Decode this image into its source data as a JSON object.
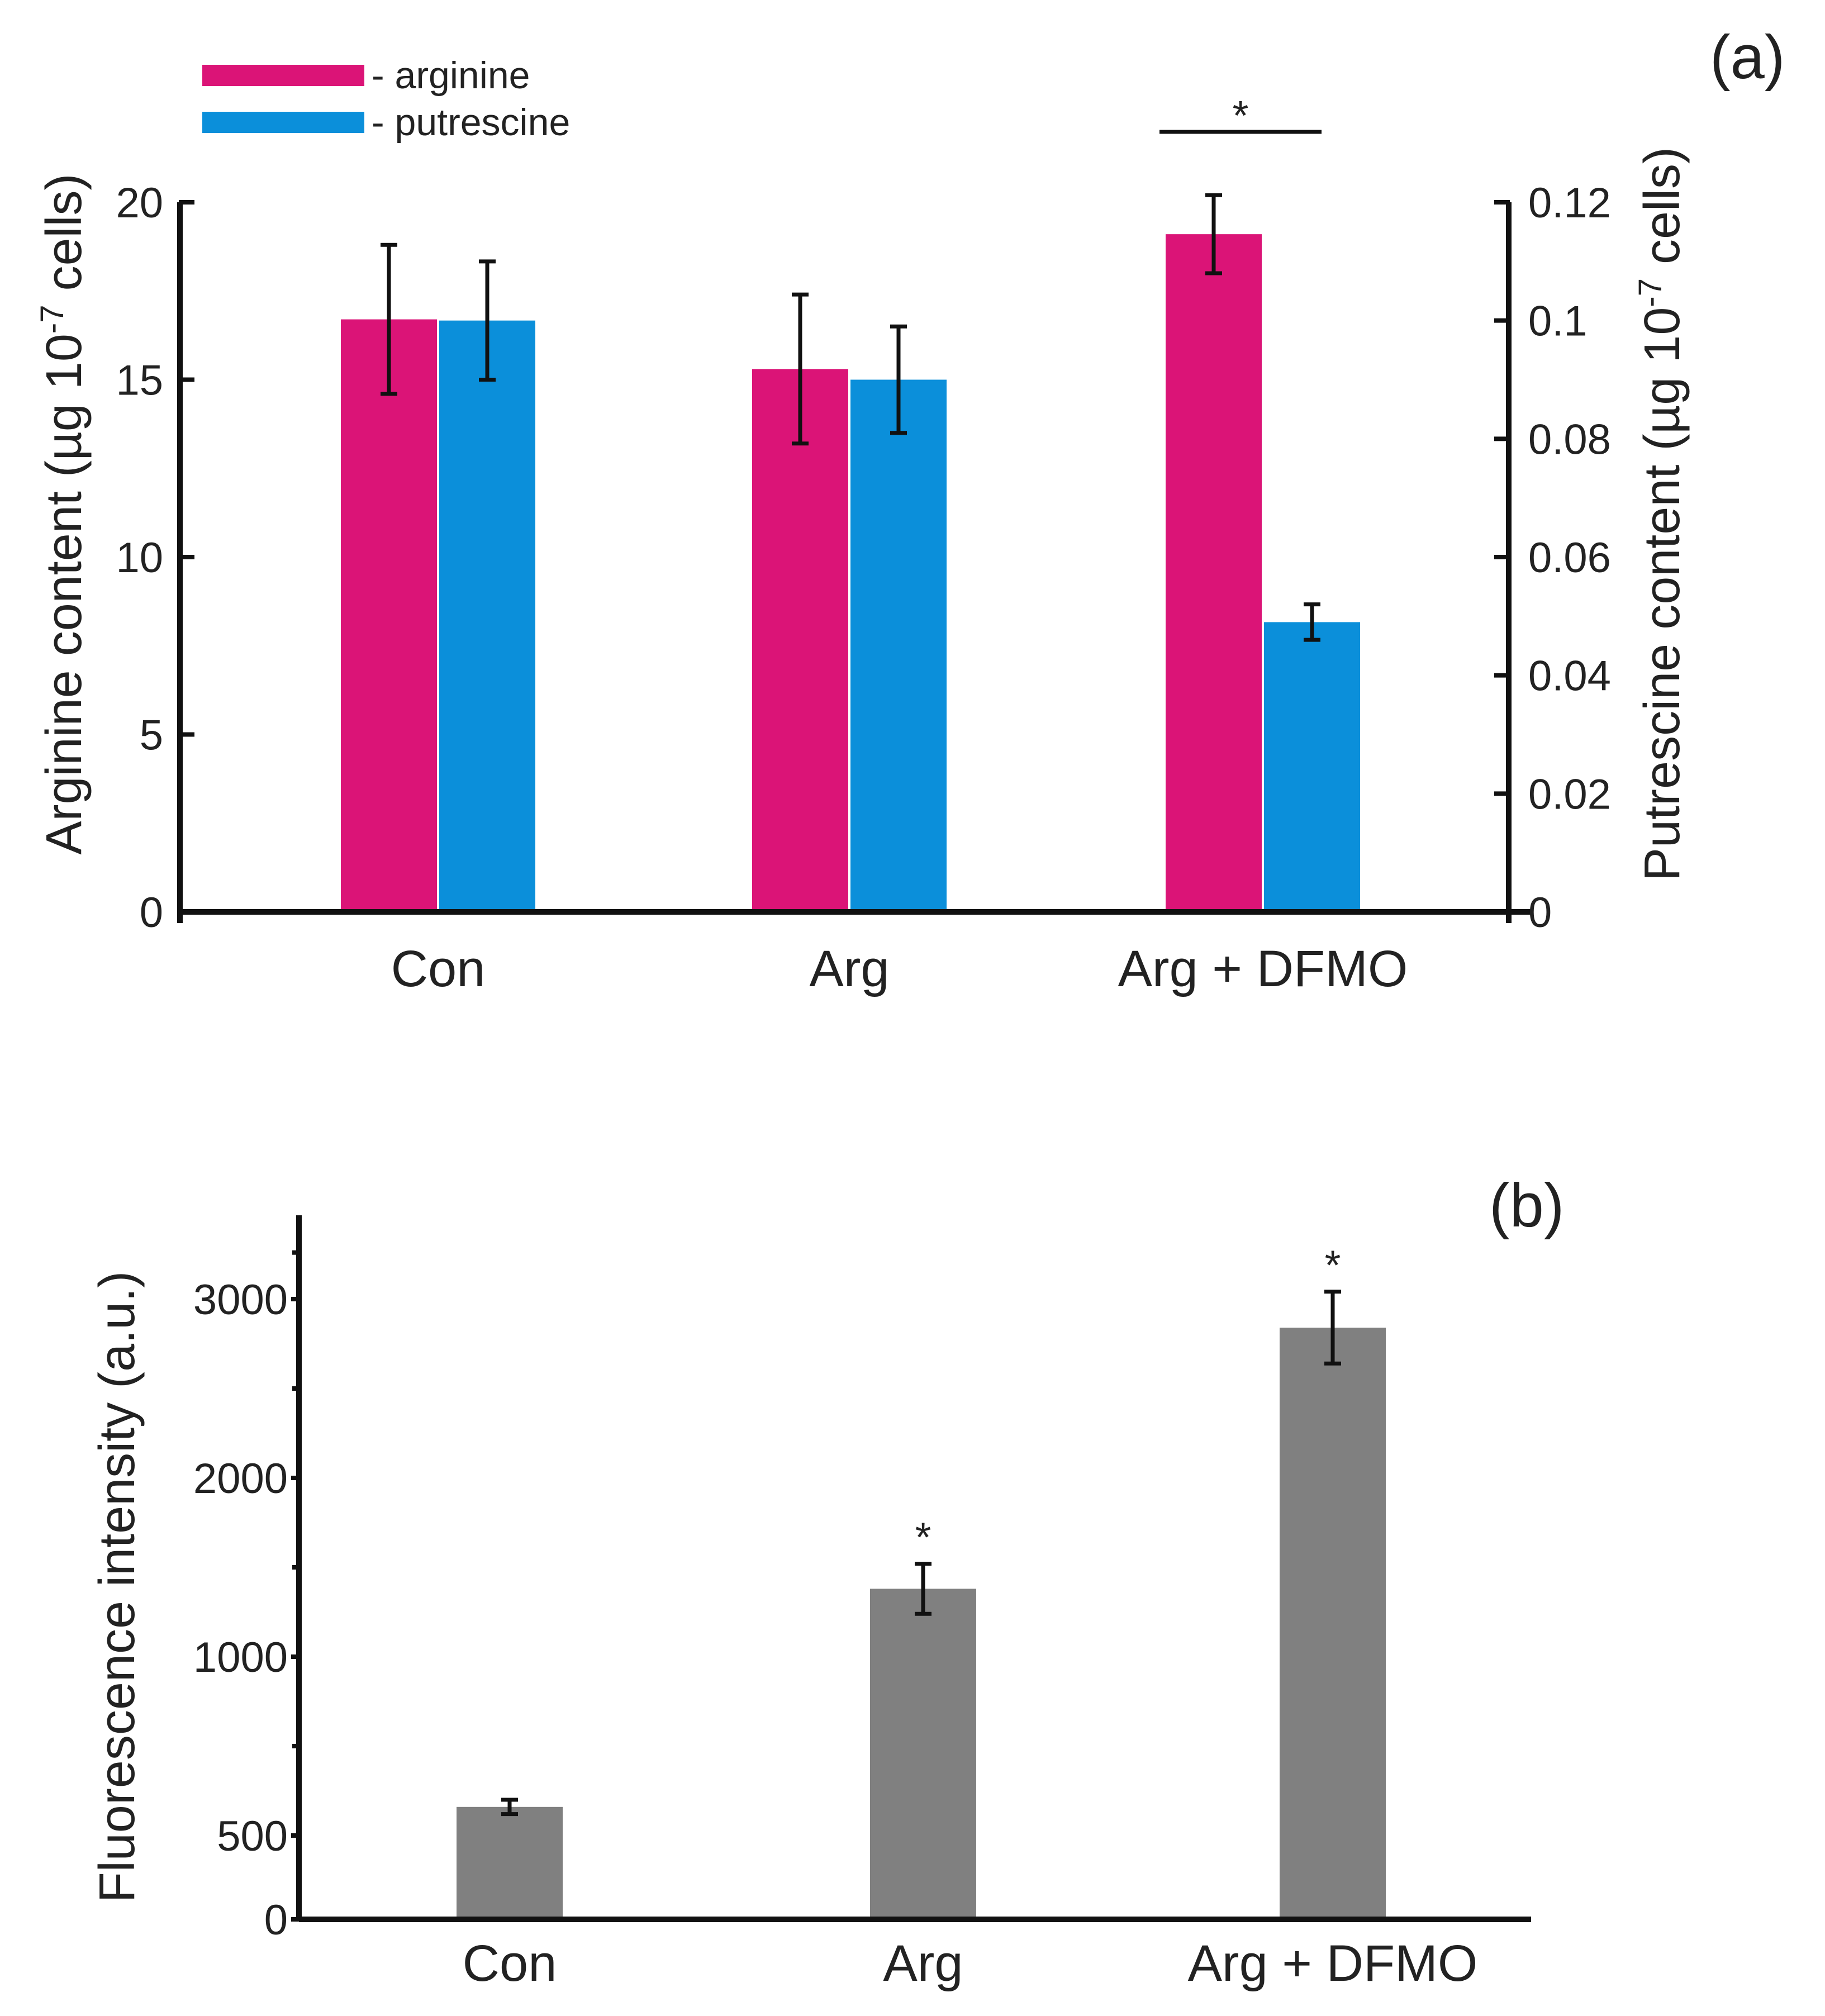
{
  "chart_data": [
    {
      "panel_label": "(a)",
      "type": "bar",
      "categories": [
        "Con",
        "Arg",
        "Arg + DFMO"
      ],
      "series": [
        {
          "name": "- arginine",
          "axis": "left",
          "color": "#db1477",
          "values": [
            16.7,
            15.3,
            19.1
          ],
          "errors": [
            2.1,
            2.1,
            1.1
          ]
        },
        {
          "name": "- putrescine",
          "axis": "right",
          "color": "#0b8fda",
          "values": [
            0.1,
            0.09,
            0.049
          ],
          "errors": [
            0.01,
            0.009,
            0.003
          ]
        }
      ],
      "ylabel": "Arginine content (µg 10",
      "ylabel_sup": "-7",
      "ylabel_tail": " cells)",
      "y2label": "Putrescine content (µg 10",
      "y2label_sup": "-7",
      "y2label_tail": " cells)",
      "ylim": [
        0,
        20
      ],
      "yticks": [
        0,
        5,
        10,
        15,
        20
      ],
      "ytick_labels": [
        "0",
        "5",
        "10",
        "15",
        "20"
      ],
      "y2lim": [
        0,
        0.12
      ],
      "y2ticks": [
        0,
        0.02,
        0.04,
        0.06,
        0.08,
        0.1,
        0.12
      ],
      "y2tick_labels": [
        "0",
        "0.02",
        "0.04",
        "0.06",
        "0.08",
        "0.1",
        "0.12"
      ],
      "significance": {
        "text": "*",
        "category": "Arg + DFMO"
      },
      "legend_position": "top-left",
      "grid": false
    },
    {
      "panel_label": "(b)",
      "type": "bar",
      "categories": [
        "Con",
        "Arg",
        "Arg + DFMO"
      ],
      "values": [
        580,
        1380,
        2840
      ],
      "errors": [
        20,
        140,
        200
      ],
      "color": "#808080",
      "ylabel": "Fluorescence intensity (a.u.)",
      "ylim": [
        0,
        3450
      ],
      "yticks": [
        0,
        500,
        1000,
        2000,
        3000
      ],
      "ytick_labels": [
        "0",
        "500",
        "1000",
        "2000",
        "3000"
      ],
      "significance_labels": [
        "",
        "*",
        "*"
      ],
      "grid": false
    }
  ]
}
